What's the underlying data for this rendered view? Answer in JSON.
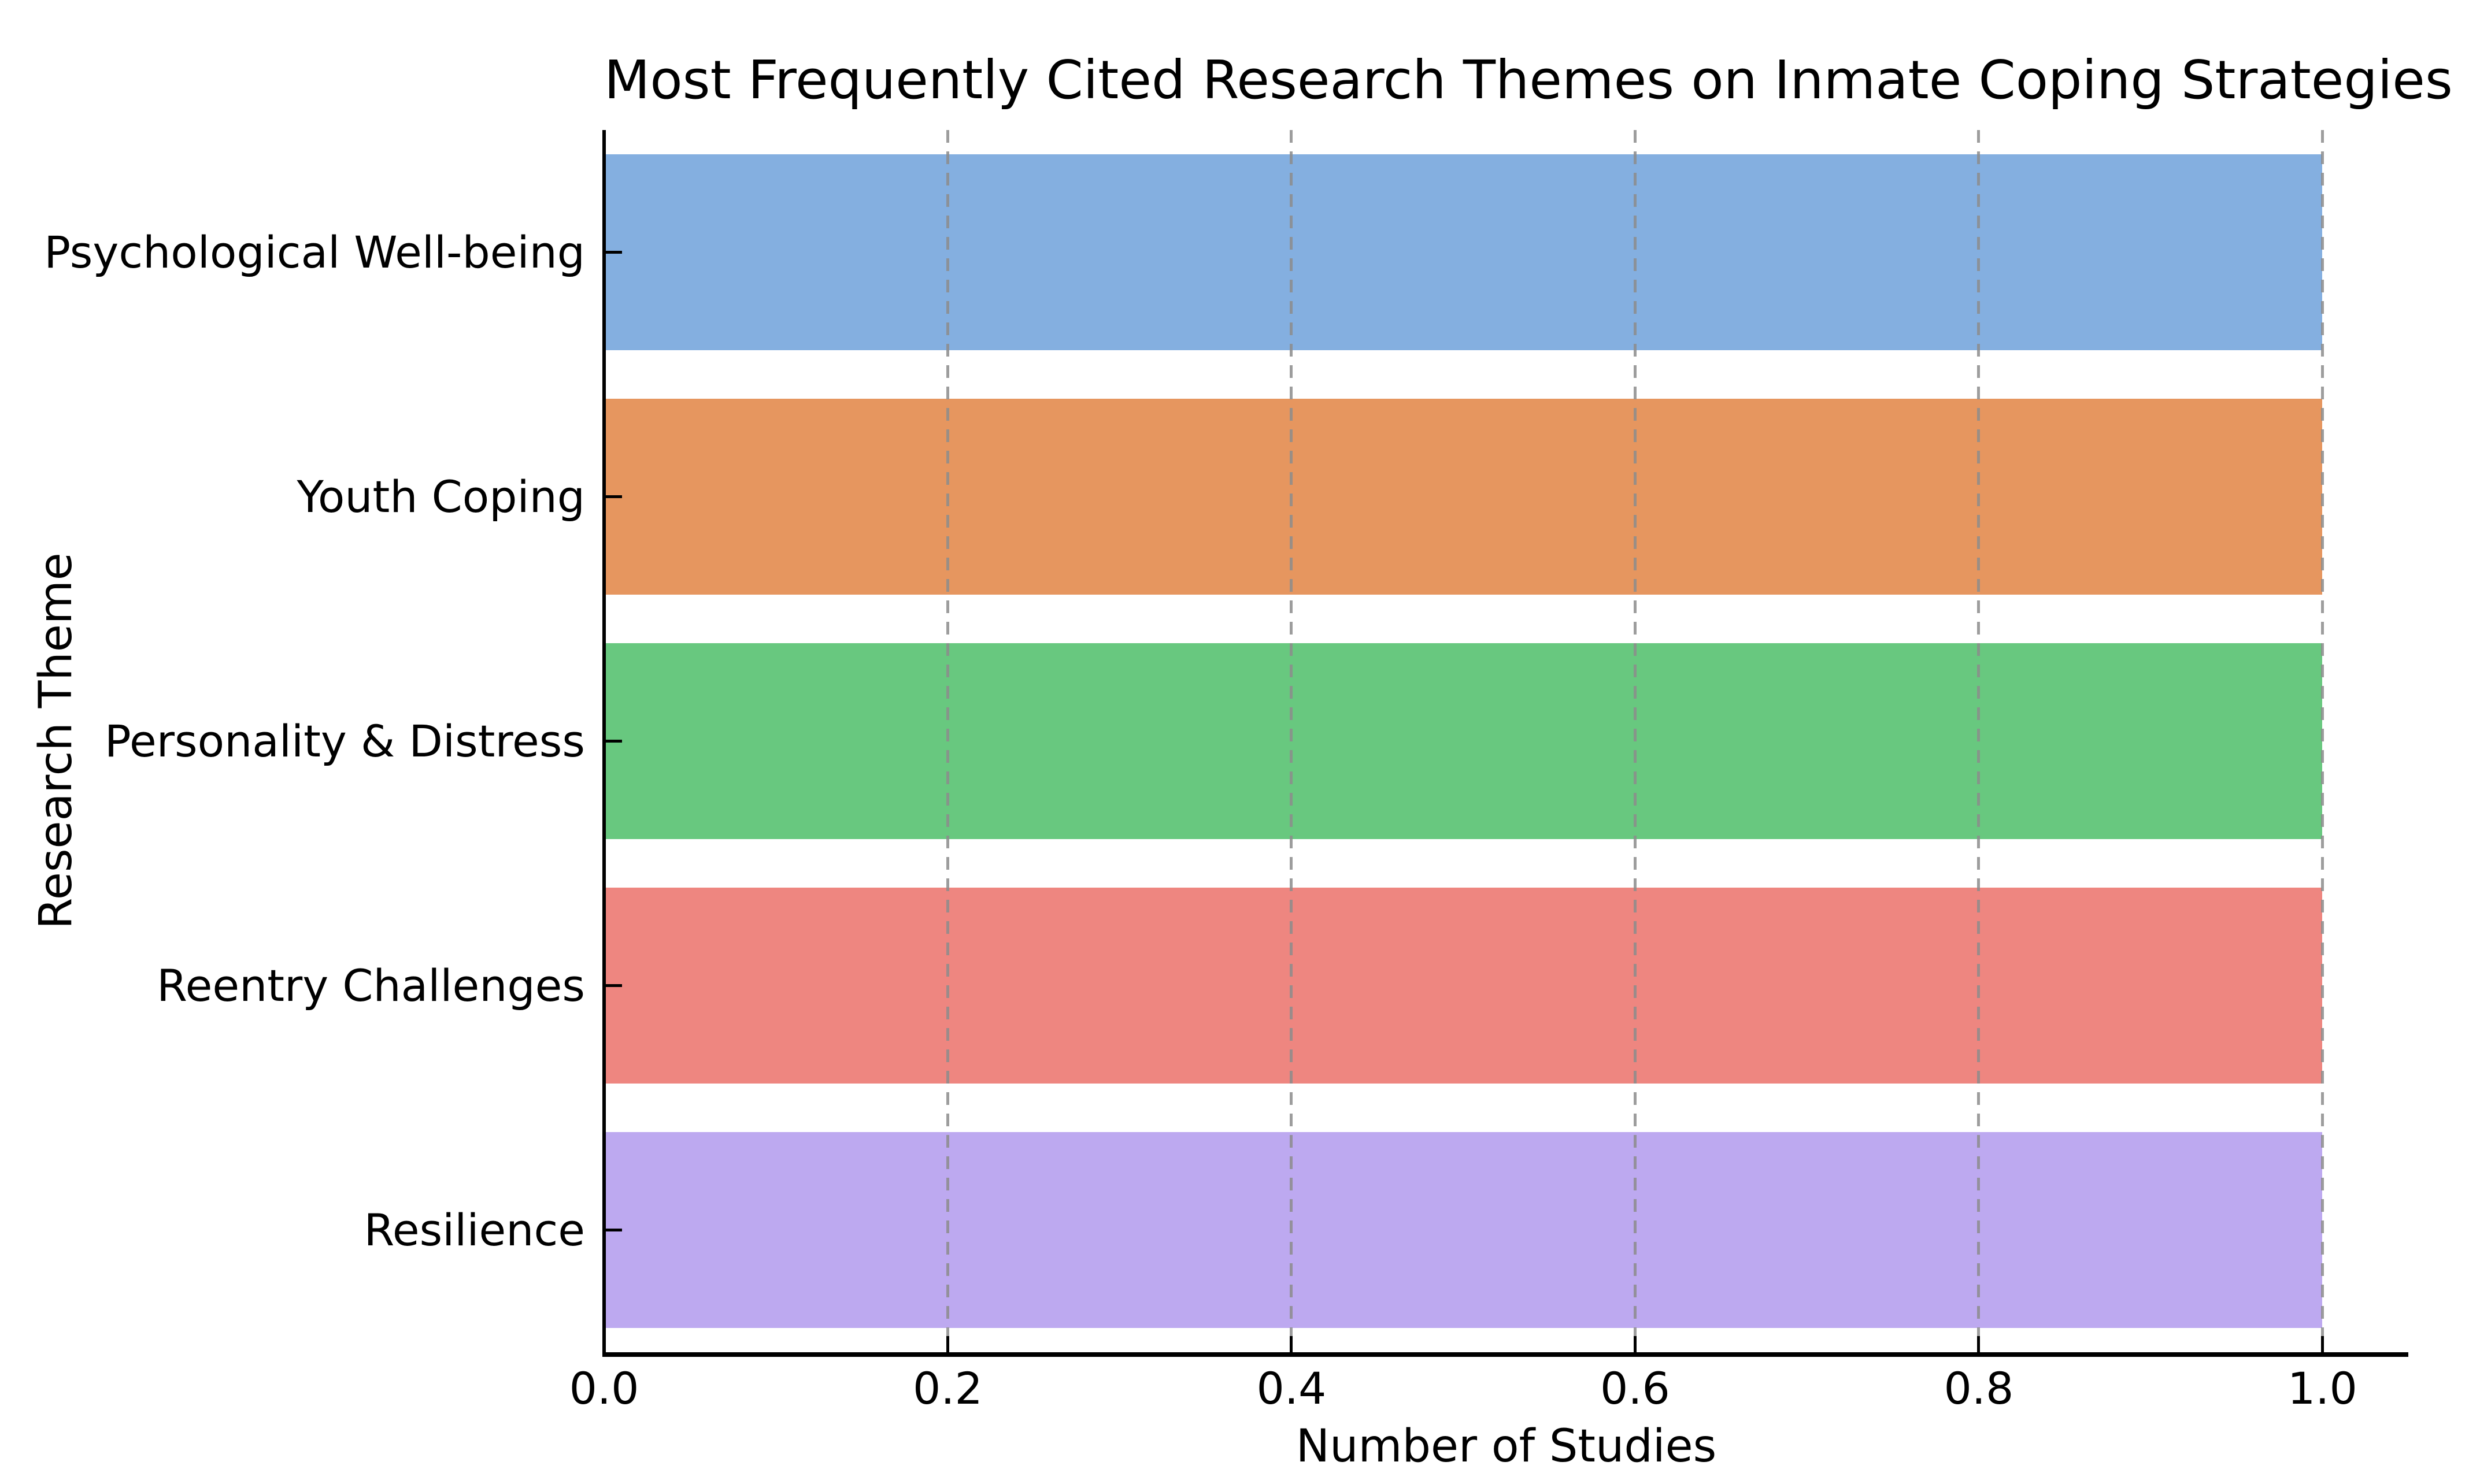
{
  "chart_data": {
    "type": "bar",
    "orientation": "horizontal",
    "title": "Most Frequently Cited Research Themes on Inmate Coping Strategies",
    "xlabel": "Number of Studies",
    "ylabel": "Research Theme",
    "categories": [
      "Psychological Well-being",
      "Youth Coping",
      "Personality & Distress",
      "Reentry Challenges",
      "Resilience"
    ],
    "values": [
      1.0,
      1.0,
      1.0,
      1.0,
      1.0
    ],
    "bar_colors": [
      "#84AFE0",
      "#E6965F",
      "#68C87F",
      "#EE8680",
      "#BDA9F0"
    ],
    "xlim": [
      0,
      1.05
    ],
    "xticks": [
      0.0,
      0.2,
      0.4,
      0.6,
      0.8,
      1.0
    ],
    "xtick_labels": [
      "0.0",
      "0.2",
      "0.4",
      "0.6",
      "0.8",
      "1.0"
    ],
    "bar_height_frac": 0.8,
    "grid": {
      "axis": "x",
      "style": "dashed",
      "color": "#8C8C8C"
    },
    "legend_position": "none"
  },
  "colors": {
    "background": "#FFFFFF",
    "spine": "#000000",
    "text": "#000000",
    "gridline": "#8C8C8C"
  }
}
